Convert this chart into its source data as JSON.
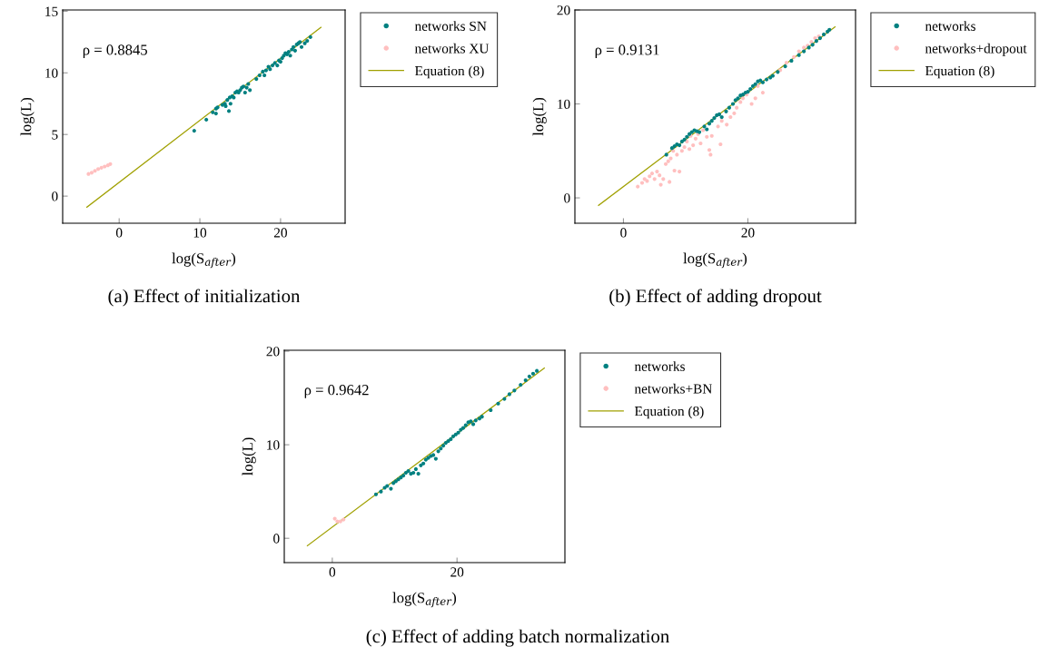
{
  "chart_data": [
    {
      "type": "scatter",
      "title": "(a) Effect of initialization",
      "xlabel": "log(S$_{after}$)",
      "ylabel": "log(L)",
      "xlim": [
        -7,
        28
      ],
      "ylim": [
        -2.2,
        15.1
      ],
      "xticks": [
        0,
        10,
        20
      ],
      "yticks": [
        0,
        5,
        10,
        15
      ],
      "legend": "top right",
      "annotations": [
        "ρ = 0.8845"
      ],
      "series": [
        {
          "name": "networks SN",
          "color": "#008080",
          "x": [
            9.3,
            10.8,
            11.6,
            12,
            12,
            12.2,
            12.8,
            13.1,
            13.2,
            13.4,
            13.6,
            13.8,
            13.7,
            14,
            14.2,
            14.4,
            14.6,
            14.8,
            15,
            15.2,
            15.4,
            15.6,
            15.8,
            16,
            16.2,
            17,
            17.4,
            17.8,
            18,
            18.2,
            18.5,
            18.7,
            19,
            19.3,
            19.6,
            19.8,
            20,
            20.2,
            20.4,
            20.6,
            20.8,
            21,
            21.2,
            21.4,
            21.6,
            21.8,
            22,
            22.2,
            22.4,
            22.6,
            23,
            23.3,
            23.7
          ],
          "values": [
            5.3,
            6.2,
            6.8,
            6.7,
            7.1,
            7.2,
            7.4,
            7.5,
            7.3,
            7.8,
            6.9,
            7.5,
            8.0,
            8.1,
            8.0,
            8.4,
            8.5,
            8.4,
            8.6,
            8.8,
            8.9,
            8.4,
            8.8,
            9.1,
            8.6,
            9.5,
            9.8,
            10.1,
            9.8,
            10.2,
            10.5,
            10.3,
            10.6,
            10.8,
            10.6,
            11.0,
            10.9,
            11.2,
            11.4,
            11.6,
            11.5,
            11.7,
            11.4,
            11.9,
            12.1,
            11.8,
            12.3,
            12.4,
            12.5,
            12.1,
            12.4,
            12.6,
            12.9
          ]
        },
        {
          "name": "networks XU",
          "color": "#ffbfbf",
          "x": [
            -3.8,
            -3.4,
            -3,
            -2.6,
            -2.2,
            -1.8,
            -1.4,
            -1.1
          ],
          "values": [
            1.8,
            1.9,
            2.05,
            2.2,
            2.3,
            2.4,
            2.5,
            2.6
          ]
        },
        {
          "name": "Equation (8)",
          "type": "line",
          "color": "#a0a000",
          "x": [
            -4,
            25
          ],
          "values": [
            -0.9,
            13.7
          ]
        }
      ]
    },
    {
      "type": "scatter",
      "title": "(b) Effect of adding dropout",
      "xlabel": "log(S$_{after}$)",
      "ylabel": "log(L)",
      "xlim": [
        -7.8,
        37.3
      ],
      "ylim": [
        -2.7,
        20
      ],
      "xticks": [
        0,
        20
      ],
      "yticks": [
        0,
        10,
        20
      ],
      "legend": "top right",
      "annotations": [
        "ρ = 0.9131"
      ],
      "series": [
        {
          "name": "networks",
          "color": "#008080",
          "x": [
            6.9,
            7.8,
            8.2,
            8.6,
            9,
            9.4,
            9.8,
            10.2,
            10.6,
            11,
            11.4,
            11.8,
            12.2,
            13,
            13.4,
            13.8,
            14.2,
            14.6,
            15,
            15.4,
            15.8,
            16.5,
            17,
            17.6,
            18,
            18.4,
            18.8,
            19.2,
            19.6,
            20,
            20.4,
            20.8,
            21.2,
            21.6,
            22,
            22.4,
            23,
            23.6,
            24,
            24.8,
            26,
            27,
            28.2,
            29,
            29.8,
            30.4,
            31,
            31.6,
            32.2,
            32.8,
            33.1
          ],
          "values": [
            4.6,
            5.3,
            5.5,
            5.7,
            5.6,
            6.0,
            6.2,
            6.5,
            6.8,
            7.0,
            7.2,
            7.1,
            7.0,
            7.6,
            7.3,
            7.9,
            8.2,
            8.5,
            8.8,
            8.9,
            8.6,
            9.2,
            9.6,
            10.0,
            10.4,
            10.6,
            10.9,
            11.0,
            11.2,
            11.3,
            11.6,
            11.9,
            12.1,
            12.4,
            12.5,
            12.3,
            12.6,
            12.8,
            13.0,
            13.4,
            14.0,
            14.6,
            15.2,
            15.6,
            16.0,
            16.3,
            16.7,
            17.0,
            17.4,
            17.7,
            17.9
          ]
        },
        {
          "name": "networks+dropout",
          "color": "#ffbfbf",
          "x": [
            2.3,
            3,
            3.4,
            3.8,
            4.2,
            4.6,
            5,
            5.4,
            5.8,
            6,
            6.4,
            6.8,
            7.2,
            7.4,
            7.6,
            8.2,
            8.6,
            9,
            9.4,
            9.8,
            10.2,
            10.6,
            11.2,
            11.6,
            12,
            12.4,
            13.4,
            13.8,
            14,
            14.2,
            15.6,
            15.2,
            15.8,
            16.6,
            17.2,
            17.8,
            18.2,
            18.8,
            19.2,
            19.8,
            20.6,
            21.2,
            21.6,
            22.4,
            25.2,
            26.2,
            27.4,
            28.2,
            29,
            29.6,
            30.2,
            30.8,
            31.4,
            12.8,
            8,
            10.8
          ],
          "values": [
            1.2,
            1.6,
            2.0,
            1.8,
            2.3,
            2.6,
            2.0,
            2.8,
            2.4,
            1.4,
            2.0,
            3.6,
            3.9,
            1.7,
            4.2,
            2.9,
            4.6,
            2.8,
            5.0,
            5.4,
            6.0,
            5.2,
            5.6,
            6.3,
            6.8,
            5.8,
            6.5,
            5.1,
            4.6,
            6.6,
            5.7,
            7.6,
            8.2,
            7.8,
            8.6,
            9.0,
            9.6,
            10.2,
            10.6,
            11.0,
            10.0,
            10.6,
            11.9,
            11.2,
            13.6,
            14.4,
            15.0,
            15.6,
            16.0,
            16.2,
            16.6,
            17.0,
            17.2,
            7.2,
            5.0,
            6.6
          ]
        },
        {
          "name": "Equation (8)",
          "type": "line",
          "color": "#a0a000",
          "x": [
            -4,
            34
          ],
          "values": [
            -0.8,
            18.2
          ]
        }
      ]
    },
    {
      "type": "scatter",
      "title": "(c) Effect of adding batch normalization",
      "xlabel": "log(S$_{after}$)",
      "ylabel": "log(L)",
      "xlim": [
        -7.7,
        37.3
      ],
      "ylim": [
        -2.6,
        20.1
      ],
      "xticks": [
        0,
        20
      ],
      "yticks": [
        0,
        10,
        20
      ],
      "legend": "top right",
      "annotations": [
        "ρ = 0.9642"
      ],
      "series": [
        {
          "name": "networks",
          "color": "#008080",
          "x": [
            7,
            7.8,
            8.4,
            8.8,
            9.4,
            9.8,
            10.2,
            10.6,
            11,
            11.4,
            11.8,
            12.2,
            12.6,
            13,
            13.4,
            13.8,
            14.2,
            14.6,
            15,
            15.4,
            15.8,
            16.2,
            16.6,
            17,
            17.4,
            17.8,
            18.2,
            18.6,
            19,
            19.4,
            19.8,
            20.2,
            20.6,
            21,
            21.4,
            21.8,
            22.2,
            22.6,
            23,
            23.6,
            24,
            25.4,
            26.6,
            27.6,
            28.4,
            29.2,
            30.2,
            31,
            31.6,
            32.2,
            32.8
          ],
          "values": [
            4.7,
            5.0,
            5.4,
            5.6,
            5.3,
            5.9,
            6.1,
            6.3,
            6.5,
            6.7,
            7.0,
            7.2,
            6.9,
            7.0,
            7.4,
            6.9,
            7.8,
            8.0,
            8.4,
            8.6,
            8.8,
            8.9,
            8.5,
            9.3,
            9.6,
            9.9,
            10.2,
            10.4,
            10.6,
            10.9,
            11.1,
            11.3,
            11.6,
            11.8,
            12.1,
            12.4,
            12.5,
            12.2,
            12.6,
            12.8,
            13.0,
            13.7,
            14.4,
            14.9,
            15.4,
            15.8,
            16.4,
            16.9,
            17.3,
            17.6,
            17.9
          ]
        },
        {
          "name": "networks+BN",
          "color": "#ffbfbf",
          "x": [
            0.4,
            0.8,
            1.3,
            1.8
          ],
          "values": [
            2.1,
            1.8,
            1.8,
            2.0
          ]
        },
        {
          "name": "Equation (8)",
          "type": "line",
          "color": "#a0a000",
          "x": [
            -4,
            34
          ],
          "values": [
            -0.8,
            18.2
          ]
        }
      ]
    }
  ]
}
